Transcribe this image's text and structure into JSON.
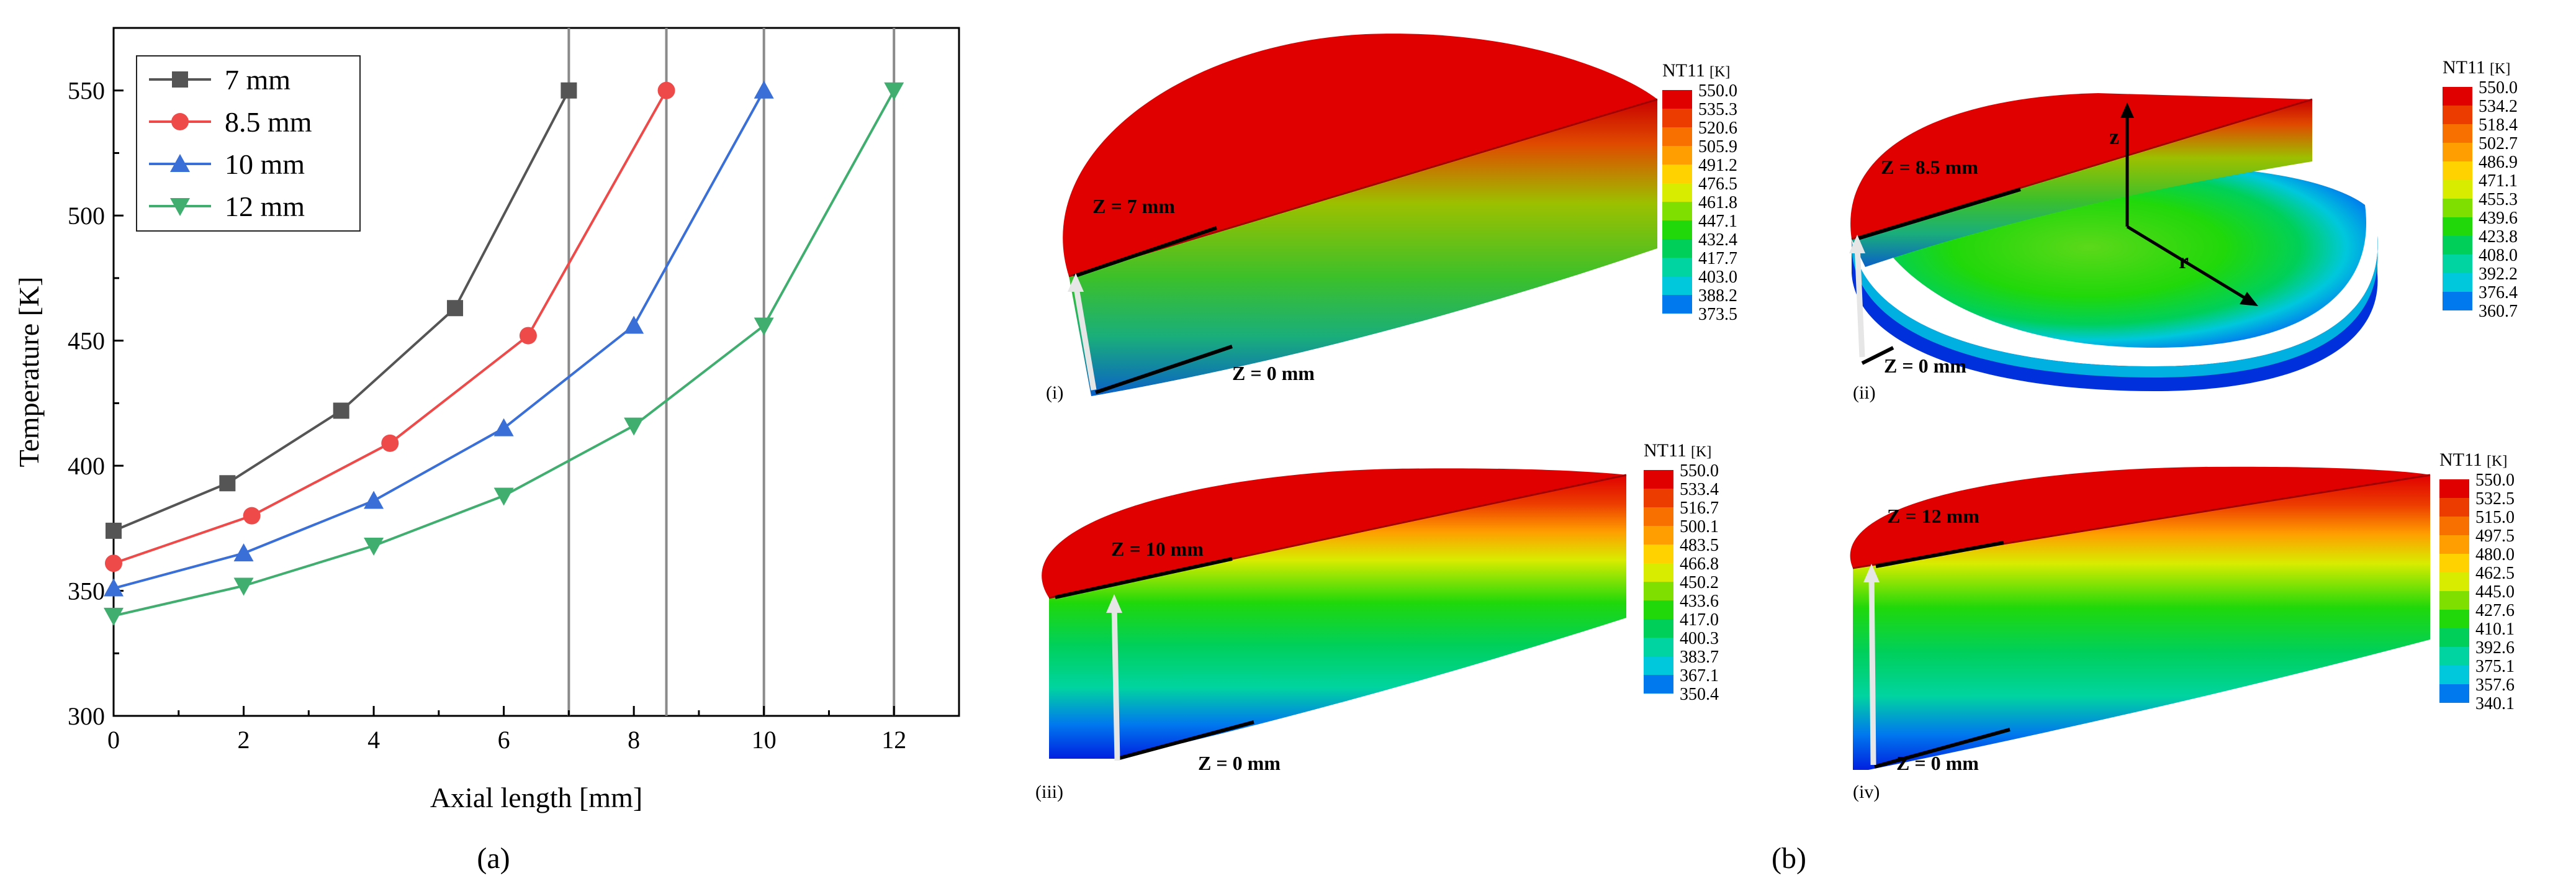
{
  "chart_data": {
    "type": "line",
    "xlabel": "Axial length [mm]",
    "ylabel": "Temperature [K]",
    "xlim": [
      0,
      13
    ],
    "ylim": [
      300,
      575
    ],
    "xticks": [
      0,
      2,
      4,
      6,
      8,
      10,
      12
    ],
    "yticks": [
      300,
      350,
      400,
      450,
      500,
      550
    ],
    "grid": false,
    "legend_position": "top-left",
    "vlines": [
      7,
      8.5,
      10,
      12
    ],
    "series": [
      {
        "name": "7 mm",
        "marker": "square",
        "color": "#555555",
        "x": [
          0,
          1.75,
          3.5,
          5.25,
          7.0
        ],
        "y": [
          374,
          393,
          422,
          463,
          550
        ]
      },
      {
        "name": "8.5 mm",
        "marker": "circle",
        "color": "#ef4a4a",
        "x": [
          0,
          2.125,
          4.25,
          6.375,
          8.5
        ],
        "y": [
          361,
          380,
          409,
          452,
          550
        ]
      },
      {
        "name": "10 mm",
        "marker": "triangle-up",
        "color": "#3a6fd8",
        "x": [
          0,
          2,
          4,
          6,
          8,
          10
        ],
        "y": [
          351,
          365,
          386,
          415,
          456,
          550
        ]
      },
      {
        "name": "12 mm",
        "marker": "triangle-down",
        "color": "#3fae6e",
        "x": [
          0,
          2,
          4,
          6,
          8,
          10,
          12
        ],
        "y": [
          340,
          352,
          368,
          388,
          416,
          456,
          550
        ]
      }
    ]
  },
  "labels": {
    "panel_a": "(a)",
    "panel_b": "(b)"
  },
  "contours": [
    {
      "roman": "(i)",
      "top_label": "Z = 7 mm",
      "bottom_label": "Z = 0 mm",
      "legend_title": "NT11",
      "legend_unit": "[K]",
      "values": [
        "550.0",
        "535.3",
        "520.6",
        "505.9",
        "491.2",
        "476.5",
        "461.8",
        "447.1",
        "432.4",
        "417.7",
        "403.0",
        "388.2",
        "373.5"
      ]
    },
    {
      "roman": "(ii)",
      "top_label": "Z = 8.5 mm",
      "bottom_label": "Z = 0 mm",
      "legend_title": "NT11",
      "legend_unit": "[K]",
      "axis_z": "z",
      "axis_r": "r",
      "values": [
        "550.0",
        "534.2",
        "518.4",
        "502.7",
        "486.9",
        "471.1",
        "455.3",
        "439.6",
        "423.8",
        "408.0",
        "392.2",
        "376.4",
        "360.7"
      ]
    },
    {
      "roman": "(iii)",
      "top_label": "Z = 10 mm",
      "bottom_label": "Z = 0 mm",
      "legend_title": "NT11",
      "legend_unit": "[K]",
      "values": [
        "550.0",
        "533.4",
        "516.7",
        "500.1",
        "483.5",
        "466.8",
        "450.2",
        "433.6",
        "417.0",
        "400.3",
        "383.7",
        "367.1",
        "350.4"
      ]
    },
    {
      "roman": "(iv)",
      "top_label": "Z = 12 mm",
      "bottom_label": "Z = 0 mm",
      "legend_title": "NT11",
      "legend_unit": "[K]",
      "values": [
        "550.0",
        "532.5",
        "515.0",
        "497.5",
        "480.0",
        "462.5",
        "445.0",
        "427.6",
        "410.1",
        "392.6",
        "375.1",
        "357.6",
        "340.1"
      ]
    }
  ],
  "colormap": [
    "#e00000",
    "#ec3c00",
    "#f77000",
    "#ff9e00",
    "#ffd200",
    "#d8ec00",
    "#7fe000",
    "#20d80a",
    "#00d05a",
    "#00d4a0",
    "#00c8dc",
    "#0078ee",
    "#0020e0"
  ]
}
